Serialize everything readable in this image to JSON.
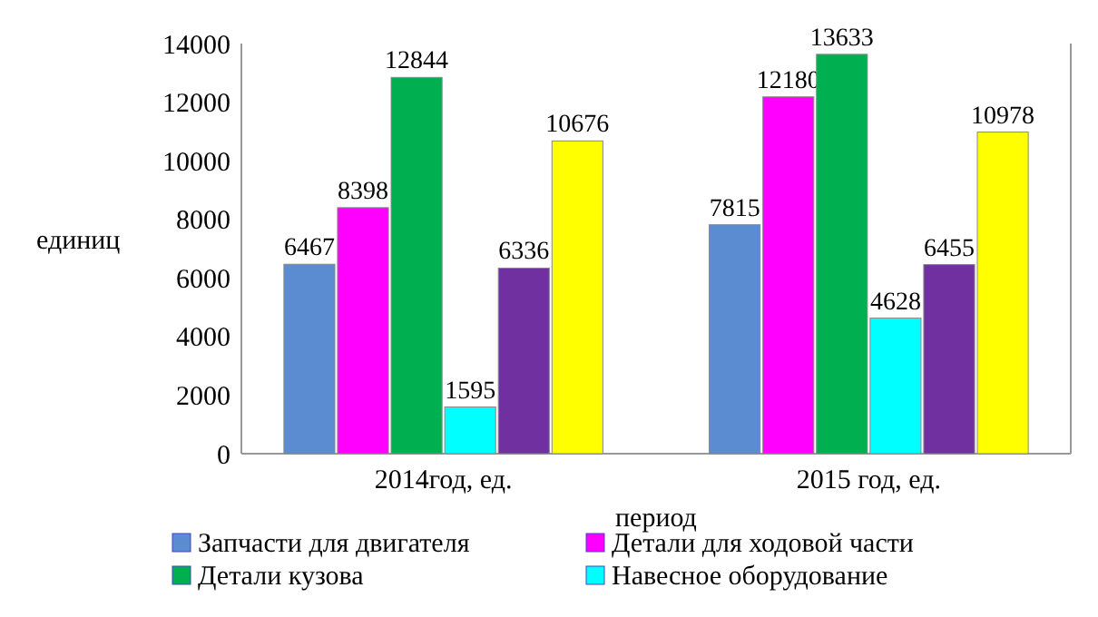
{
  "chart_data": {
    "type": "bar",
    "xlabel": "период",
    "ylabel": "единиц",
    "categories": [
      "2014год, ед.",
      "2015 год, ед."
    ],
    "series": [
      {
        "name": "Запчасти для двигателя",
        "color": "#5b8bd0",
        "values": [
          6467,
          7815
        ]
      },
      {
        "name": "Детали для ходовой части",
        "color": "#ff00ff",
        "values": [
          8398,
          12180
        ]
      },
      {
        "name": "Детали кузова",
        "color": "#00b050",
        "values": [
          12844,
          13633
        ]
      },
      {
        "name": "Навесное оборудование",
        "color": "#00ffff",
        "values": [
          1595,
          4628
        ]
      },
      {
        "color": "#7030a0",
        "values": [
          6336,
          6455
        ]
      },
      {
        "color": "#ffff00",
        "values": [
          10676,
          10978
        ]
      }
    ],
    "ylim": [
      0,
      14000
    ],
    "yticks": [
      0,
      2000,
      4000,
      6000,
      8000,
      10000,
      12000,
      14000
    ],
    "data_labels": true,
    "grid": false,
    "legend": "bottom"
  }
}
